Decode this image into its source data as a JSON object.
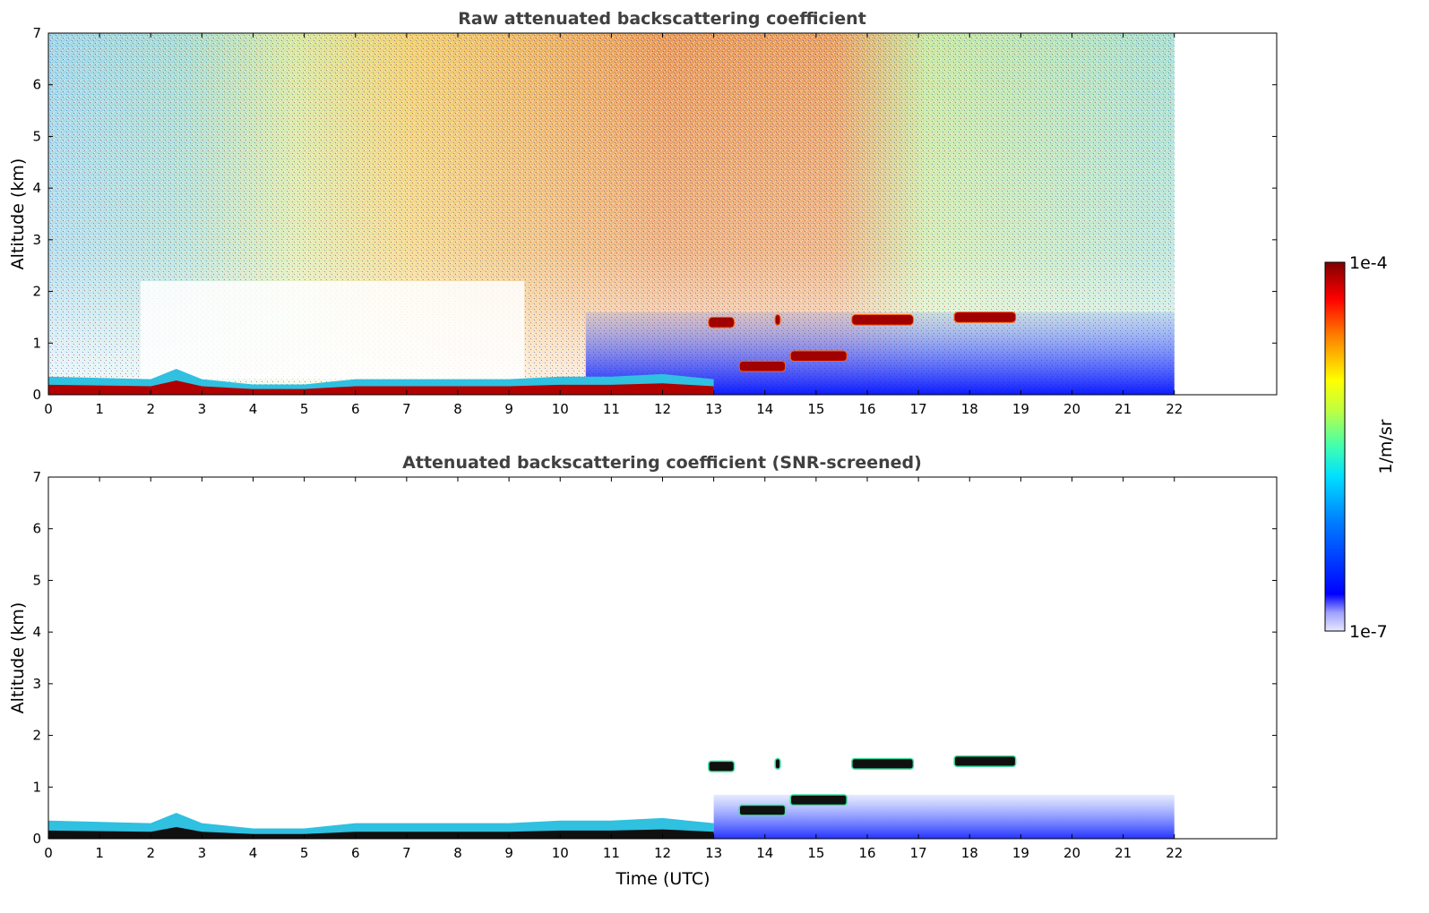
{
  "chart_data": [
    {
      "type": "heatmap",
      "title": "Raw attenuated backscattering coefficient",
      "xlabel": "",
      "ylabel": "Altitude (km)",
      "xlim": [
        0,
        24
      ],
      "ylim": [
        0,
        7
      ],
      "data_xlim": [
        0,
        22
      ],
      "xticks": [
        "0",
        "1",
        "2",
        "3",
        "4",
        "5",
        "6",
        "7",
        "8",
        "9",
        "10",
        "11",
        "12",
        "13",
        "14",
        "15",
        "16",
        "17",
        "18",
        "19",
        "20",
        "21",
        "22"
      ],
      "yticks": [
        "0",
        "1",
        "2",
        "3",
        "4",
        "5",
        "6",
        "7"
      ],
      "features": {
        "surface_layer_top_km": [
          [
            0,
            0.35
          ],
          [
            2,
            0.3
          ],
          [
            2.5,
            0.5
          ],
          [
            3,
            0.3
          ],
          [
            4,
            0.2
          ],
          [
            5,
            0.2
          ],
          [
            6,
            0.3
          ],
          [
            7,
            0.3
          ],
          [
            8,
            0.3
          ],
          [
            9,
            0.3
          ],
          [
            10,
            0.35
          ],
          [
            11,
            0.35
          ],
          [
            12,
            0.4
          ],
          [
            13,
            0.3
          ]
        ],
        "elevated_layers": [
          {
            "t_start": 12.9,
            "t_end": 13.4,
            "alt_km": 1.4
          },
          {
            "t_start": 14.2,
            "t_end": 14.3,
            "alt_km": 1.45
          },
          {
            "t_start": 15.7,
            "t_end": 16.9,
            "alt_km": 1.45
          },
          {
            "t_start": 17.7,
            "t_end": 18.9,
            "alt_km": 1.5
          },
          {
            "t_start": 14.5,
            "t_end": 15.6,
            "alt_km": 0.75
          },
          {
            "t_start": 13.5,
            "t_end": 14.4,
            "alt_km": 0.55
          }
        ]
      }
    },
    {
      "type": "heatmap",
      "title": "Attenuated backscattering coefficient (SNR-screened)",
      "xlabel": "Time (UTC)",
      "ylabel": "Altitude (km)",
      "xlim": [
        0,
        24
      ],
      "ylim": [
        0,
        7
      ],
      "data_xlim": [
        0,
        22
      ],
      "xticks": [
        "0",
        "1",
        "2",
        "3",
        "4",
        "5",
        "6",
        "7",
        "8",
        "9",
        "10",
        "11",
        "12",
        "13",
        "14",
        "15",
        "16",
        "17",
        "18",
        "19",
        "20",
        "21",
        "22"
      ],
      "yticks": [
        "0",
        "1",
        "2",
        "3",
        "4",
        "5",
        "6",
        "7"
      ]
    }
  ],
  "colorbar": {
    "label": "1/m/sr",
    "max_label": "1e-4",
    "min_label": "1e-7",
    "colormap": [
      "#e8e8ff",
      "#0000ff",
      "#00c8ff",
      "#40ffb8",
      "#ffff00",
      "#ff8000",
      "#ff0000",
      "#800000"
    ]
  }
}
